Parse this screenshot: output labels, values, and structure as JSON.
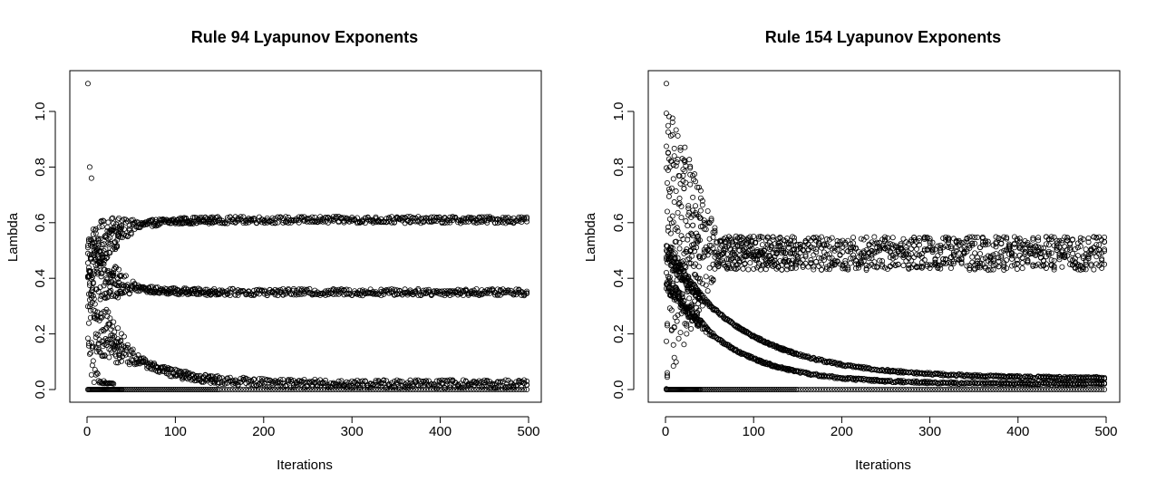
{
  "chart_data": [
    {
      "type": "scatter",
      "title": "Rule 94 Lyapunov Exponents",
      "xlabel": "Iterations",
      "ylabel": "Lambda",
      "xlim": [
        0,
        500
      ],
      "ylim": [
        0,
        1.1
      ],
      "xticks": [
        "0",
        "100",
        "200",
        "300",
        "400",
        "500"
      ],
      "yticks": [
        "0.0",
        "0.2",
        "0.4",
        "0.6",
        "0.8",
        "1.0"
      ],
      "marker": "open-circle",
      "grid": false,
      "legend": "none",
      "series": [
        {
          "label": "upper branch",
          "description": "converges from ~0.46 up to ~0.61",
          "start": 0.46,
          "end": 0.61,
          "spread": 0.012
        },
        {
          "label": "middle branch",
          "description": "band converging to ~0.35",
          "start": 0.46,
          "end": 0.35,
          "spread": 0.012
        },
        {
          "label": "lower branch",
          "description": "decays from ~0.3 toward ~0.02",
          "start": 0.3,
          "end": 0.02,
          "spread": 0.015
        },
        {
          "label": "zero line",
          "description": "constant 0.0",
          "start": 0.0,
          "end": 0.0,
          "spread": 0.0
        }
      ],
      "outliers": [
        {
          "x": 1,
          "y": 1.1
        },
        {
          "x": 3,
          "y": 0.8
        },
        {
          "x": 5,
          "y": 0.76
        }
      ]
    },
    {
      "type": "scatter",
      "title": "Rule 154 Lyapunov Exponents",
      "xlabel": "Iterations",
      "ylabel": "Lambda",
      "xlim": [
        0,
        500
      ],
      "ylim": [
        0,
        1.1
      ],
      "xticks": [
        "0",
        "100",
        "200",
        "300",
        "400",
        "500"
      ],
      "yticks": [
        "0.0",
        "0.2",
        "0.4",
        "0.6",
        "0.8",
        "1.0"
      ],
      "marker": "open-circle",
      "grid": false,
      "legend": "none",
      "series": [
        {
          "label": "main band",
          "description": "dense band ~0.45-0.6 converging to ~0.49",
          "start": 0.53,
          "end": 0.49,
          "spread": 0.06
        },
        {
          "label": "decay 1",
          "description": "decays from ~0.5 toward ~0.04",
          "start": 0.5,
          "end": 0.04,
          "spread": 0.004
        },
        {
          "label": "decay 2",
          "description": "decays from ~0.4 toward ~0.02",
          "start": 0.4,
          "end": 0.02,
          "spread": 0.004
        },
        {
          "label": "zero line",
          "description": "constant 0.0",
          "start": 0.0,
          "end": 0.0,
          "spread": 0.0
        }
      ],
      "outliers": [
        {
          "x": 1,
          "y": 1.1
        },
        {
          "x": 3,
          "y": 0.85
        },
        {
          "x": 2,
          "y": 0.23
        }
      ]
    }
  ]
}
